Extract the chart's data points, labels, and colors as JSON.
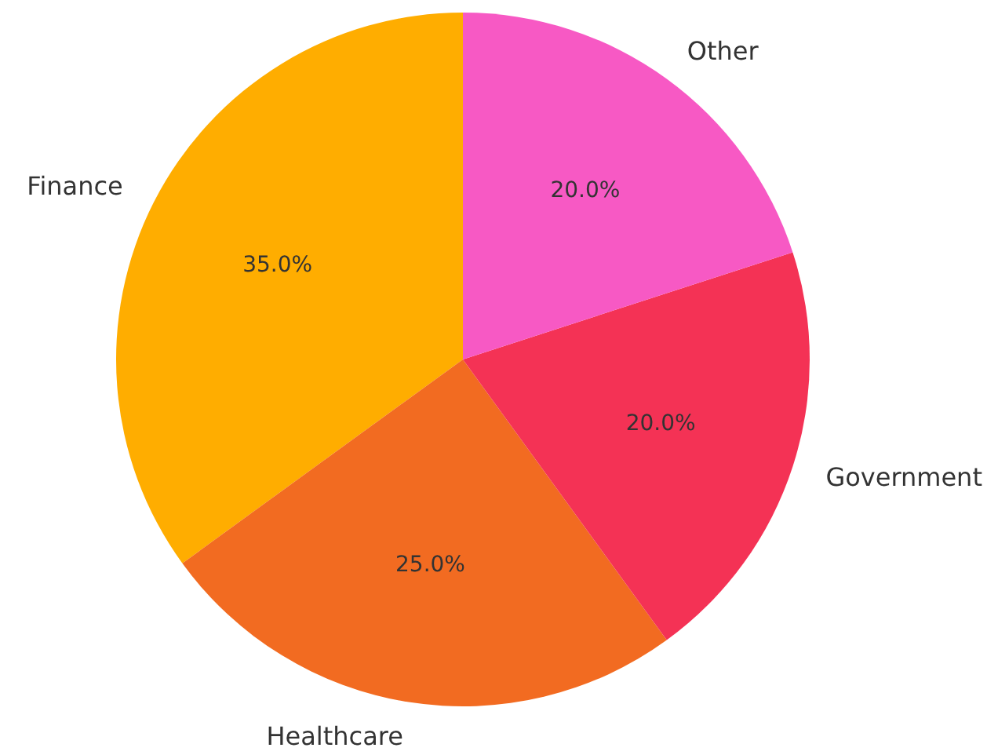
{
  "chart_data": {
    "type": "pie",
    "categories": [
      "Finance",
      "Healthcare",
      "Government",
      "Other"
    ],
    "values": [
      35,
      25,
      20,
      20
    ],
    "colors": [
      "#ffad00",
      "#f26b21",
      "#f43255",
      "#f759c4"
    ],
    "value_labels": [
      "35.0%",
      "25.0%",
      "20.0%",
      "20.0%"
    ],
    "legend": false
  }
}
